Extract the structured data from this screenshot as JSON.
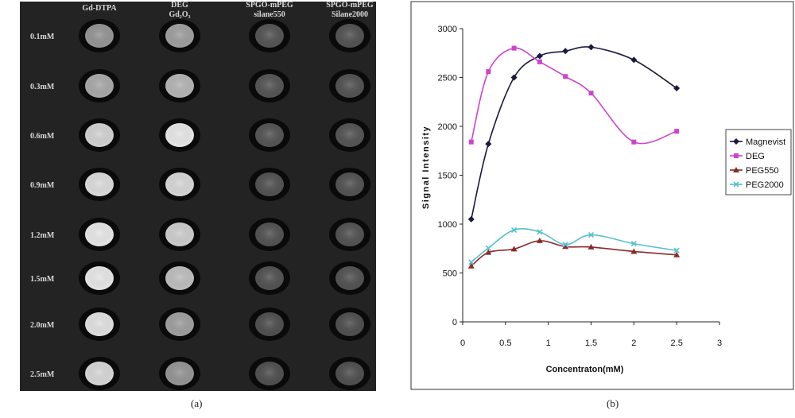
{
  "panel_a": {
    "caption": "(a)",
    "column_labels": [
      [
        "Gd-DTPA"
      ],
      [
        "DEG",
        "Gd₂O₃"
      ],
      [
        "SPGO-mPEG",
        "silane550"
      ],
      [
        "SPGO-mPEG",
        "Silane2000"
      ]
    ],
    "row_labels": [
      "0.1mM",
      "0.3mM",
      "0.6mM",
      "0.9mM",
      "1.2mM",
      "1.5mM",
      "2.0mM",
      "2.5mM"
    ],
    "spot_brightness": [
      [
        0.58,
        0.62,
        0.33,
        0.32
      ],
      [
        0.66,
        0.7,
        0.33,
        0.32
      ],
      [
        0.82,
        0.9,
        0.33,
        0.33
      ],
      [
        0.86,
        0.84,
        0.32,
        0.32
      ],
      [
        0.9,
        0.8,
        0.32,
        0.32
      ],
      [
        0.9,
        0.74,
        0.32,
        0.32
      ],
      [
        0.88,
        0.62,
        0.31,
        0.31
      ],
      [
        0.84,
        0.58,
        0.31,
        0.31
      ]
    ]
  },
  "panel_b": {
    "caption": "(b)"
  },
  "chart_data": {
    "type": "line",
    "title": "",
    "xlabel": "Concentraton(mM)",
    "ylabel": "Signal Intensity",
    "xlim": [
      0,
      3
    ],
    "ylim": [
      0,
      3000
    ],
    "xticks": [
      0,
      0.5,
      1,
      1.5,
      2,
      2.5,
      3
    ],
    "yticks": [
      0,
      500,
      1000,
      1500,
      2000,
      2500,
      3000
    ],
    "grid": false,
    "legend_position": "right",
    "series": [
      {
        "name": "Magnevist",
        "color": "#1a1a40",
        "marker": "diamond",
        "x": [
          0.1,
          0.3,
          0.6,
          0.9,
          1.2,
          1.5,
          2.0,
          2.5
        ],
        "y": [
          1050,
          1820,
          2500,
          2720,
          2770,
          2810,
          2680,
          2390
        ]
      },
      {
        "name": "DEG",
        "color": "#cc44cc",
        "marker": "square",
        "x": [
          0.1,
          0.3,
          0.6,
          0.9,
          1.2,
          1.5,
          2.0,
          2.5
        ],
        "y": [
          1840,
          2560,
          2800,
          2660,
          2510,
          2340,
          1840,
          1950
        ]
      },
      {
        "name": "PEG550",
        "color": "#8b2a2a",
        "marker": "triangle",
        "x": [
          0.1,
          0.3,
          0.6,
          0.9,
          1.2,
          1.5,
          2.0,
          2.5
        ],
        "y": [
          570,
          710,
          745,
          830,
          770,
          765,
          720,
          685
        ]
      },
      {
        "name": "PEG2000",
        "color": "#55c0cc",
        "marker": "x",
        "x": [
          0.1,
          0.3,
          0.6,
          0.9,
          1.2,
          1.5,
          2.0,
          2.5
        ],
        "y": [
          610,
          755,
          940,
          920,
          790,
          890,
          800,
          730
        ]
      }
    ]
  }
}
